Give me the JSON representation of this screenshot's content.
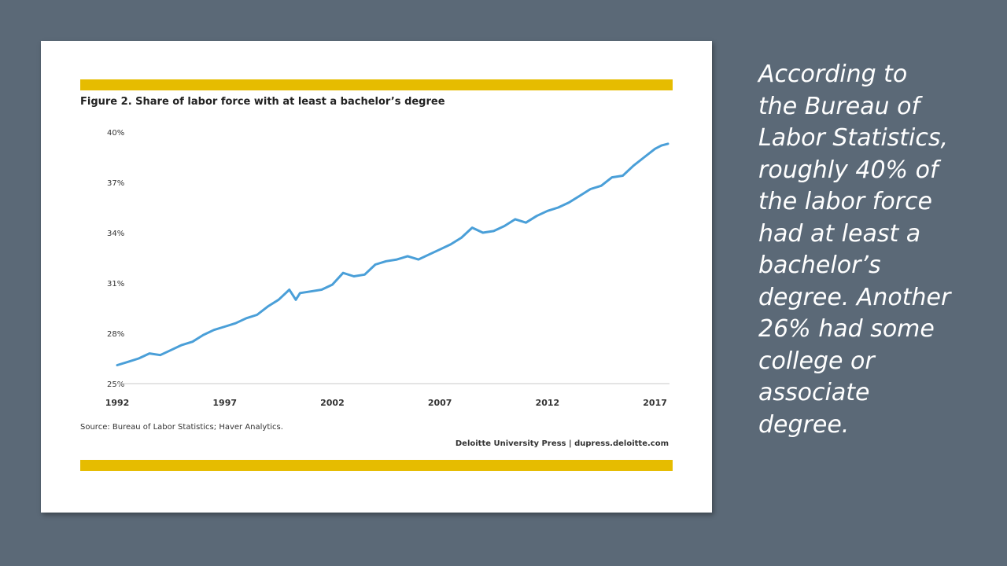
{
  "slide": {
    "text_lines": [
      "According to",
      "the Bureau of",
      "Labor Statistics,",
      "roughly 40% of",
      "the labor force",
      "had at least a",
      "bachelor’s",
      "degree. Another",
      "26% had some",
      "college or",
      "associate",
      "degree."
    ],
    "background_color": "#5b6977",
    "text_color": "#ffffff"
  },
  "figure": {
    "accent_color": "#e6bc00",
    "source": "Source: Bureau of Labor Statistics; Haver Analytics.",
    "credit": "Deloitte University Press  |  dupress.deloitte.com"
  },
  "chart_data": {
    "type": "line",
    "title": "Figure 2. Share of labor force with at least a bachelor’s degree",
    "xlabel": "",
    "ylabel": "",
    "x_ticks": [
      "1992",
      "1997",
      "2002",
      "2007",
      "2012",
      "2017"
    ],
    "y_ticks": [
      "25%",
      "28%",
      "31%",
      "34%",
      "37%",
      "40%"
    ],
    "xlim": [
      1992,
      2017.6
    ],
    "ylim": [
      25,
      40
    ],
    "grid": false,
    "legend": "none",
    "series": [
      {
        "color": "#4a9fd8",
        "points": [
          [
            1992.0,
            26.1
          ],
          [
            1992.5,
            26.3
          ],
          [
            1993.0,
            26.5
          ],
          [
            1993.5,
            26.8
          ],
          [
            1994.0,
            26.7
          ],
          [
            1994.5,
            27.0
          ],
          [
            1995.0,
            27.3
          ],
          [
            1995.5,
            27.5
          ],
          [
            1996.0,
            27.9
          ],
          [
            1996.5,
            28.2
          ],
          [
            1997.0,
            28.4
          ],
          [
            1997.5,
            28.6
          ],
          [
            1998.0,
            28.9
          ],
          [
            1998.5,
            29.1
          ],
          [
            1999.0,
            29.6
          ],
          [
            1999.5,
            30.0
          ],
          [
            2000.0,
            30.6
          ],
          [
            2000.3,
            30.0
          ],
          [
            2000.5,
            30.4
          ],
          [
            2001.0,
            30.5
          ],
          [
            2001.5,
            30.6
          ],
          [
            2002.0,
            30.9
          ],
          [
            2002.5,
            31.6
          ],
          [
            2003.0,
            31.4
          ],
          [
            2003.5,
            31.5
          ],
          [
            2004.0,
            32.1
          ],
          [
            2004.5,
            32.3
          ],
          [
            2005.0,
            32.4
          ],
          [
            2005.5,
            32.6
          ],
          [
            2006.0,
            32.4
          ],
          [
            2006.5,
            32.7
          ],
          [
            2007.0,
            33.0
          ],
          [
            2007.5,
            33.3
          ],
          [
            2008.0,
            33.7
          ],
          [
            2008.5,
            34.3
          ],
          [
            2009.0,
            34.0
          ],
          [
            2009.5,
            34.1
          ],
          [
            2010.0,
            34.4
          ],
          [
            2010.5,
            34.8
          ],
          [
            2011.0,
            34.6
          ],
          [
            2011.5,
            35.0
          ],
          [
            2012.0,
            35.3
          ],
          [
            2012.5,
            35.5
          ],
          [
            2013.0,
            35.8
          ],
          [
            2013.5,
            36.2
          ],
          [
            2014.0,
            36.6
          ],
          [
            2014.5,
            36.8
          ],
          [
            2015.0,
            37.3
          ],
          [
            2015.5,
            37.4
          ],
          [
            2016.0,
            38.0
          ],
          [
            2016.5,
            38.5
          ],
          [
            2017.0,
            39.0
          ],
          [
            2017.3,
            39.2
          ],
          [
            2017.6,
            39.3
          ]
        ]
      }
    ]
  }
}
